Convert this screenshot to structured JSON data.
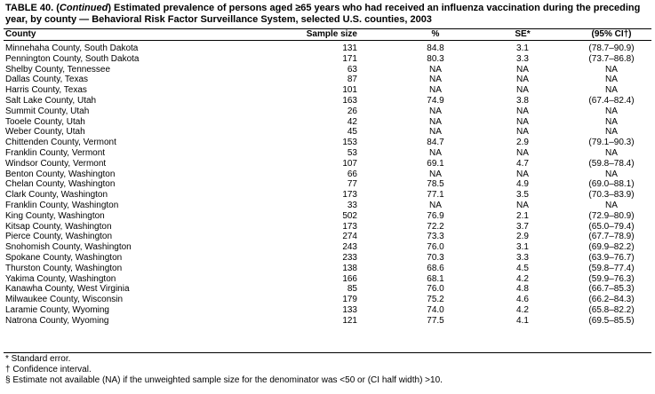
{
  "title": {
    "parts": [
      "TABLE 40. (",
      "Continued",
      ") Estimated prevalence of persons aged ",
      "≥",
      "65 years who had received an influenza vaccination during the preceding year, by county — Behavioral Risk Factor Surveillance System, selected U.S. counties, 2003"
    ]
  },
  "table": {
    "header": [
      "County",
      "Sample size",
      "%",
      "SE*",
      "(95% CI†)"
    ],
    "rows": [
      [
        "Minnehaha County, South Dakota",
        "131",
        "84.8",
        "3.1",
        "(78.7–90.9)"
      ],
      [
        "Pennington County, South Dakota",
        "171",
        "80.3",
        "3.3",
        "(73.7–86.8)"
      ],
      [
        "Shelby County, Tennessee",
        "63",
        "NA",
        "NA",
        "NA"
      ],
      [
        "Dallas County, Texas",
        "87",
        "NA",
        "NA",
        "NA"
      ],
      [
        "Harris County, Texas",
        "101",
        "NA",
        "NA",
        "NA"
      ],
      [
        "Salt Lake County, Utah",
        "163",
        "74.9",
        "3.8",
        "(67.4–82.4)"
      ],
      [
        "Summit County, Utah",
        "26",
        "NA",
        "NA",
        "NA"
      ],
      [
        "Tooele County, Utah",
        "42",
        "NA",
        "NA",
        "NA"
      ],
      [
        "Weber County, Utah",
        "45",
        "NA",
        "NA",
        "NA"
      ],
      [
        "Chittenden County, Vermont",
        "153",
        "84.7",
        "2.9",
        "(79.1–90.3)"
      ],
      [
        "Franklin County, Vermont",
        "53",
        "NA",
        "NA",
        "NA"
      ],
      [
        "Windsor County, Vermont",
        "107",
        "69.1",
        "4.7",
        "(59.8–78.4)"
      ],
      [
        "Benton County, Washington",
        "66",
        "NA",
        "NA",
        "NA"
      ],
      [
        "Chelan County, Washington",
        "77",
        "78.5",
        "4.9",
        "(69.0–88.1)"
      ],
      [
        "Clark County, Washington",
        "173",
        "77.1",
        "3.5",
        "(70.3–83.9)"
      ],
      [
        "Franklin County, Washington",
        "33",
        "NA",
        "NA",
        "NA"
      ],
      [
        "King County, Washington",
        "502",
        "76.9",
        "2.1",
        "(72.9–80.9)"
      ],
      [
        "Kitsap County, Washington",
        "173",
        "72.2",
        "3.7",
        "(65.0–79.4)"
      ],
      [
        "Pierce County, Washington",
        "274",
        "73.3",
        "2.9",
        "(67.7–78.9)"
      ],
      [
        "Snohomish County, Washington",
        "243",
        "76.0",
        "3.1",
        "(69.9–82.2)"
      ],
      [
        "Spokane County, Washington",
        "233",
        "70.3",
        "3.3",
        "(63.9–76.7)"
      ],
      [
        "Thurston County, Washington",
        "138",
        "68.6",
        "4.5",
        "(59.8–77.4)"
      ],
      [
        "Yakima County, Washington",
        "166",
        "68.1",
        "4.2",
        "(59.9–76.3)"
      ],
      [
        "Kanawha County, West Virginia",
        "85",
        "76.0",
        "4.8",
        "(66.7–85.3)"
      ],
      [
        "Milwaukee County, Wisconsin",
        "179",
        "75.2",
        "4.6",
        "(66.2–84.3)"
      ],
      [
        "Laramie County, Wyoming",
        "133",
        "74.0",
        "4.2",
        "(65.8–82.2)"
      ],
      [
        "Natrona County, Wyoming",
        "121",
        "77.5",
        "4.1",
        "(69.5–85.5)"
      ]
    ]
  },
  "footnotes": [
    "* Standard error.",
    "† Confidence interval.",
    "§ Estimate not available (NA) if the unweighted sample size for the denominator was <50 or (CI half width) >10."
  ]
}
